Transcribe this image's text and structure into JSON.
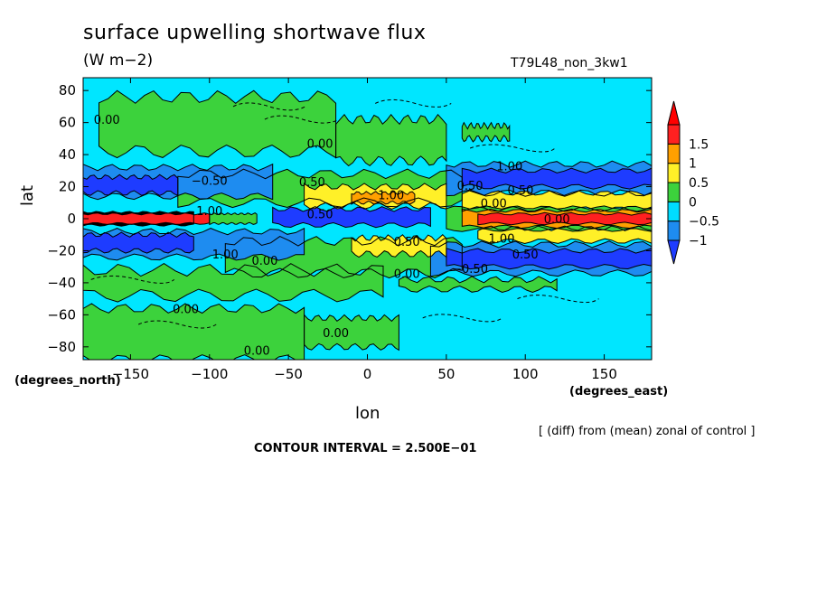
{
  "chart_data": {
    "type": "heatmap",
    "title": "surface upwelling shortwave flux",
    "units": "(W m−2)",
    "run_id": "T79L48_non_3kw1",
    "xlabel": "lon",
    "ylabel": "lat",
    "x_units": "(degrees_east)",
    "y_units": "(degrees_north)",
    "xlim": [
      -180,
      180
    ],
    "ylim": [
      -88,
      88
    ],
    "x_ticks": [
      -150,
      -100,
      -50,
      0,
      50,
      100,
      150
    ],
    "x_tick_labels": [
      "−150",
      "−100",
      "−50",
      "0",
      "50",
      "100",
      "150"
    ],
    "y_ticks": [
      80,
      60,
      40,
      20,
      0,
      -20,
      -40,
      -60,
      -80
    ],
    "y_tick_labels": [
      "80",
      "60",
      "40",
      "20",
      "0",
      "−20",
      "−40",
      "−60",
      "−80"
    ],
    "note": "[ (diff) from (mean) zonal of control ]",
    "contour_interval_text": "CONTOUR INTERVAL = 2.500E−01",
    "colorbar": {
      "levels": [
        -1,
        -0.5,
        0,
        0.5,
        1,
        1.5
      ],
      "labels": [
        "−1",
        "−0.5",
        "0",
        "0.5",
        "1",
        "1.5"
      ],
      "colors": [
        "#1e8cf0",
        "#00dcff",
        "#3cd23c",
        "#fff028",
        "#ffa000",
        "#ff2020"
      ],
      "below_color": "#1e3cff",
      "above_color": "#ff0000",
      "background_color": "#00e6ff"
    },
    "contour_labels": [
      {
        "text": "0.00",
        "lon": -165,
        "lat": 62
      },
      {
        "text": "0.00",
        "lon": -30,
        "lat": 47
      },
      {
        "text": "0.50",
        "lon": -35,
        "lat": 23
      },
      {
        "text": "1.00",
        "lon": 15,
        "lat": 15
      },
      {
        "text": "−0.50",
        "lon": -100,
        "lat": 24
      },
      {
        "text": "1.00",
        "lon": -100,
        "lat": 5
      },
      {
        "text": "0.50",
        "lon": -30,
        "lat": 3
      },
      {
        "text": "0.50",
        "lon": 25,
        "lat": -14
      },
      {
        "text": "1.00",
        "lon": 90,
        "lat": 33
      },
      {
        "text": "0.50",
        "lon": 65,
        "lat": 21
      },
      {
        "text": "0.50",
        "lon": 97,
        "lat": 18
      },
      {
        "text": "0.00",
        "lon": 80,
        "lat": 10
      },
      {
        "text": "0.00",
        "lon": 120,
        "lat": 0
      },
      {
        "text": "1.00",
        "lon": 85,
        "lat": -12
      },
      {
        "text": "0.50",
        "lon": 100,
        "lat": -22
      },
      {
        "text": "1.00",
        "lon": -90,
        "lat": -22
      },
      {
        "text": "−0.50",
        "lon": 65,
        "lat": -31
      },
      {
        "text": "0.00",
        "lon": -65,
        "lat": -26
      },
      {
        "text": "0.00",
        "lon": 25,
        "lat": -34
      },
      {
        "text": "0.00",
        "lon": -115,
        "lat": -56
      },
      {
        "text": "0.00",
        "lon": -20,
        "lat": -71
      },
      {
        "text": "0.00",
        "lon": -70,
        "lat": -82
      }
    ]
  }
}
